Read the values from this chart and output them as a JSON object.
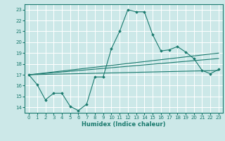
{
  "xlabel": "Humidex (Indice chaleur)",
  "ylabel": "",
  "xlim": [
    -0.5,
    23.5
  ],
  "ylim": [
    13.5,
    23.5
  ],
  "yticks": [
    14,
    15,
    16,
    17,
    18,
    19,
    20,
    21,
    22,
    23
  ],
  "xticks": [
    0,
    1,
    2,
    3,
    4,
    5,
    6,
    7,
    8,
    9,
    10,
    11,
    12,
    13,
    14,
    15,
    16,
    17,
    18,
    19,
    20,
    21,
    22,
    23
  ],
  "bg_color": "#cce8e8",
  "line_color": "#1a7a6e",
  "grid_color": "#ffffff",
  "main_line": {
    "x": [
      0,
      1,
      2,
      3,
      4,
      5,
      6,
      7,
      8,
      9,
      10,
      11,
      12,
      13,
      14,
      15,
      16,
      17,
      18,
      19,
      20,
      21,
      22,
      23
    ],
    "y": [
      17.0,
      16.1,
      14.7,
      15.3,
      15.3,
      14.1,
      13.7,
      14.3,
      16.8,
      16.8,
      19.4,
      21.0,
      23.0,
      22.8,
      22.8,
      20.7,
      19.2,
      19.3,
      19.6,
      19.1,
      18.5,
      17.4,
      17.1,
      17.5
    ]
  },
  "trend_lines": [
    {
      "x": [
        0,
        23
      ],
      "y": [
        17.0,
        19.0
      ]
    },
    {
      "x": [
        0,
        23
      ],
      "y": [
        17.0,
        18.5
      ]
    },
    {
      "x": [
        0,
        23
      ],
      "y": [
        17.0,
        17.4
      ]
    }
  ]
}
